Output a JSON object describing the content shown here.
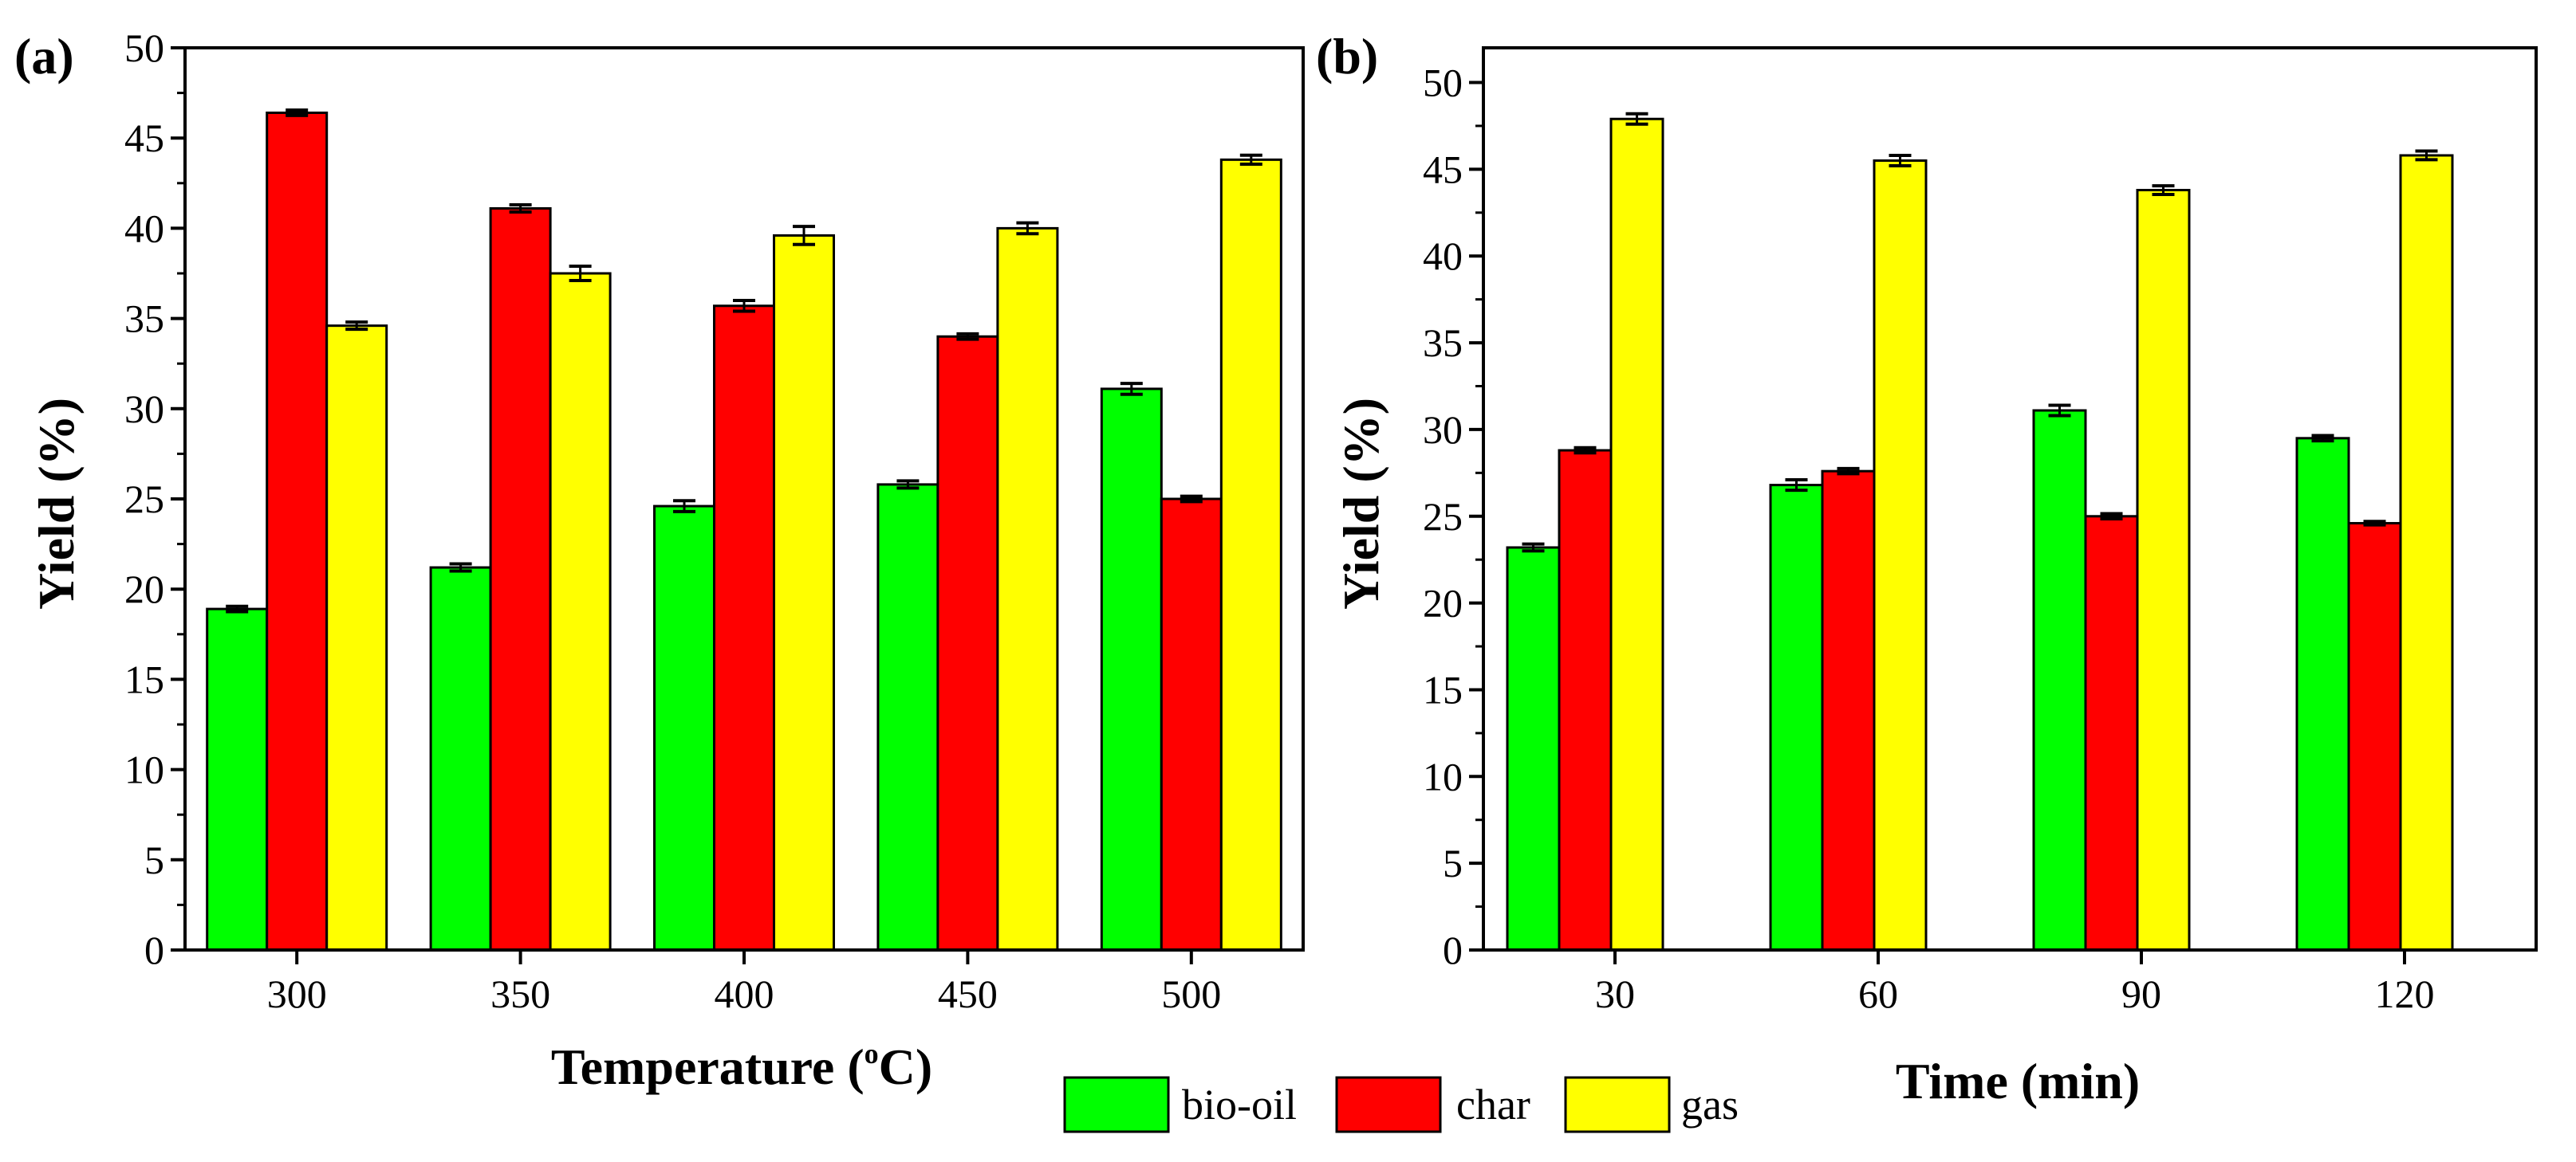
{
  "colors": {
    "bio-oil": "#00ff00",
    "char": "#ff0000",
    "gas": "#ffff00"
  },
  "legend": {
    "items": [
      {
        "key": "bio-oil",
        "label": "bio-oil"
      },
      {
        "key": "char",
        "label": "char"
      },
      {
        "key": "gas",
        "label": "gas"
      }
    ]
  },
  "chart_data": [
    {
      "type": "bar",
      "panel_label": "(a)",
      "xlabel_main": "Temperature (",
      "xlabel_sup": "o",
      "xlabel_end": "C)",
      "ylabel": "Yield (%)",
      "ylim": [
        0,
        50
      ],
      "yticks": [
        0,
        5,
        10,
        15,
        20,
        25,
        30,
        35,
        40,
        45,
        50
      ],
      "categories": [
        "300",
        "350",
        "400",
        "450",
        "500"
      ],
      "series": [
        {
          "name": "bio-oil",
          "values": [
            18.9,
            21.2,
            24.6,
            25.8,
            31.1
          ],
          "errors": [
            0.15,
            0.2,
            0.3,
            0.2,
            0.3
          ]
        },
        {
          "name": "char",
          "values": [
            46.4,
            41.1,
            35.7,
            34.0,
            25.0
          ],
          "errors": [
            0.15,
            0.2,
            0.3,
            0.15,
            0.15
          ]
        },
        {
          "name": "gas",
          "values": [
            34.6,
            37.5,
            39.6,
            40.0,
            43.8
          ],
          "errors": [
            0.2,
            0.4,
            0.5,
            0.3,
            0.25
          ]
        }
      ]
    },
    {
      "type": "bar",
      "panel_label": "(b)",
      "xlabel_main": "Time (min)",
      "xlabel_sup": "",
      "xlabel_end": "",
      "ylabel": "Yield (%)",
      "ylim": [
        0,
        52
      ],
      "yticks": [
        0,
        5,
        10,
        15,
        20,
        25,
        30,
        35,
        40,
        45,
        50
      ],
      "categories": [
        "30",
        "60",
        "90",
        "120"
      ],
      "series": [
        {
          "name": "bio-oil",
          "values": [
            23.2,
            26.8,
            31.1,
            29.5
          ],
          "errors": [
            0.2,
            0.3,
            0.3,
            0.15
          ]
        },
        {
          "name": "char",
          "values": [
            28.8,
            27.6,
            25.0,
            24.6
          ],
          "errors": [
            0.15,
            0.15,
            0.15,
            0.1
          ]
        },
        {
          "name": "gas",
          "values": [
            47.9,
            45.5,
            43.8,
            45.8
          ],
          "errors": [
            0.3,
            0.3,
            0.25,
            0.25
          ]
        }
      ]
    }
  ]
}
